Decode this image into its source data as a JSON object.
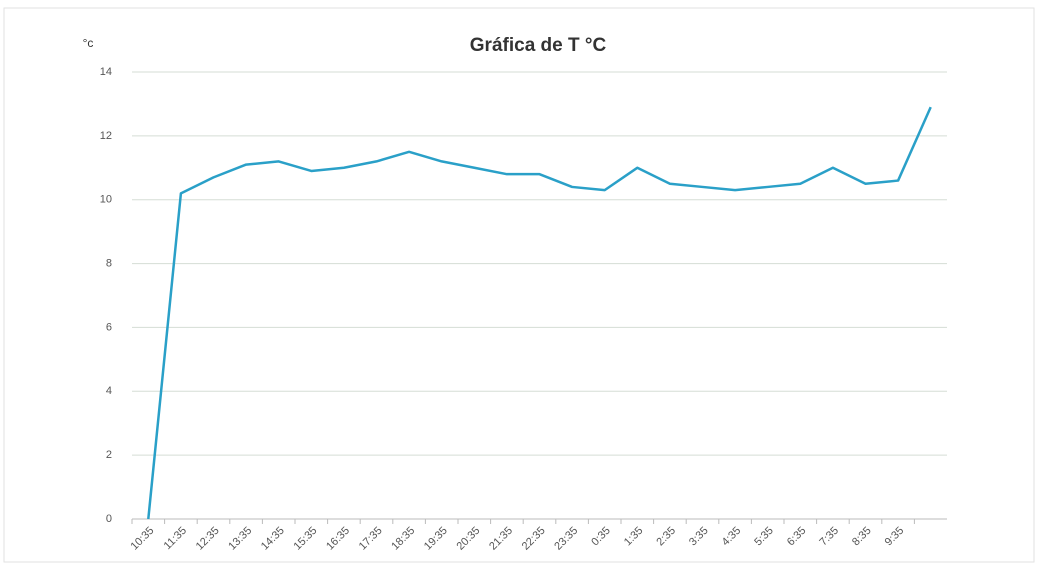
{
  "chart_data": {
    "type": "line",
    "title": "Gráfica de T °C",
    "y_label": "°c",
    "categories": [
      "10:35",
      "11:35",
      "12:35",
      "13:35",
      "14:35",
      "15:35",
      "16:35",
      "17:35",
      "18:35",
      "19:35",
      "20:35",
      "21:35",
      "22:35",
      "23:35",
      "0:35",
      "1:35",
      "2:35",
      "3:35",
      "4:35",
      "5:35",
      "6:35",
      "7:35",
      "8:35",
      "9:35",
      null
    ],
    "series": [
      {
        "name": "T",
        "color": "#2aa0c8",
        "values": [
          0,
          10.2,
          10.7,
          11.1,
          11.2,
          10.9,
          11.0,
          11.2,
          11.5,
          11.2,
          11.0,
          10.8,
          10.8,
          10.4,
          10.3,
          11.0,
          10.5,
          10.4,
          10.3,
          10.4,
          10.5,
          11.0,
          10.5,
          10.6,
          12.9
        ]
      }
    ],
    "ylim": [
      0,
      14
    ],
    "yticks": [
      0,
      2,
      4,
      6,
      8,
      10,
      12,
      14
    ],
    "grid": true
  }
}
